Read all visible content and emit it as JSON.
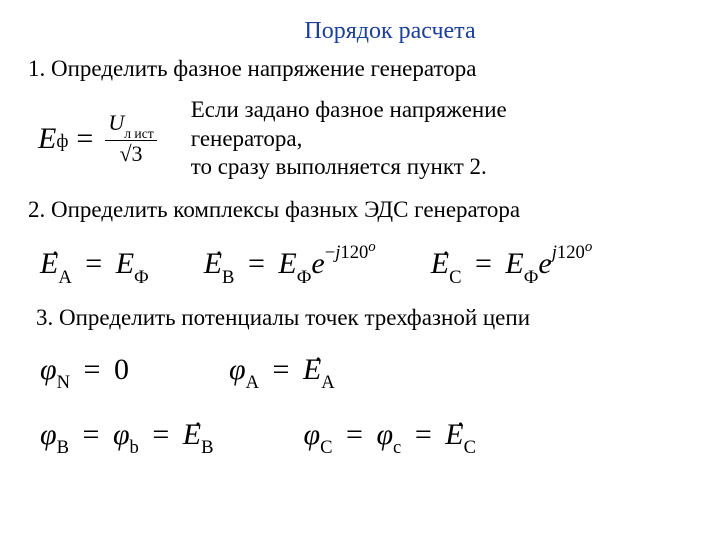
{
  "title": {
    "text": "Порядок расчета",
    "color": "#1a3f9c",
    "fontsize": 24
  },
  "steps": {
    "s1": "1. Определить фазное напряжение генератора",
    "s1_note_l1": "Если задано фазное напряжение генератора,",
    "s1_note_l2": "то сразу выполняется пункт 2.",
    "s2": "2. Определить комплексы фазных ЭДС генератора",
    "s3": "3. Определить потенциалы точек трехфазной цепи"
  },
  "formulas": {
    "ef_lhs_var": "E",
    "ef_lhs_sub": "ф",
    "ef_frac_num_var": "U",
    "ef_frac_num_sub": "л ист",
    "ef_frac_den_sqrt": "3",
    "ea": {
      "lhs_var": "E",
      "lhs_sub": "A",
      "rhs_var": "E",
      "rhs_sub": "Ф"
    },
    "eb": {
      "lhs_var": "E",
      "lhs_sub": "B",
      "rhs_var": "E",
      "rhs_sub": "Ф",
      "exp_pre": "e",
      "exp_sign": "−",
      "exp_j": "j",
      "exp_ang": "120",
      "exp_deg": "o"
    },
    "ec": {
      "lhs_var": "E",
      "lhs_sub": "C",
      "rhs_var": "E",
      "rhs_sub": "Ф",
      "exp_pre": "e",
      "exp_j": "j",
      "exp_ang": "120",
      "exp_deg": "o"
    },
    "phiN": {
      "lhs_var": "φ",
      "lhs_sub": "N",
      "rhs": "0"
    },
    "phiA": {
      "lhs_var": "φ",
      "lhs_sub": "A",
      "rhs_var": "E",
      "rhs_sub": "A"
    },
    "phiB": {
      "lhs_var": "φ",
      "sub1": "B",
      "sub2": "b",
      "rhs_var": "E",
      "rhs_sub": "B"
    },
    "phiC": {
      "lhs_var": "φ",
      "sub1": "C",
      "sub2": "c",
      "rhs_var": "E",
      "rhs_sub": "C"
    }
  },
  "colors": {
    "title": "#1a3f9c",
    "text": "#000000",
    "bg": "#ffffff"
  },
  "typography": {
    "body_fontsize": 23,
    "formula_fontsize": 30,
    "font_family": "Times New Roman"
  }
}
